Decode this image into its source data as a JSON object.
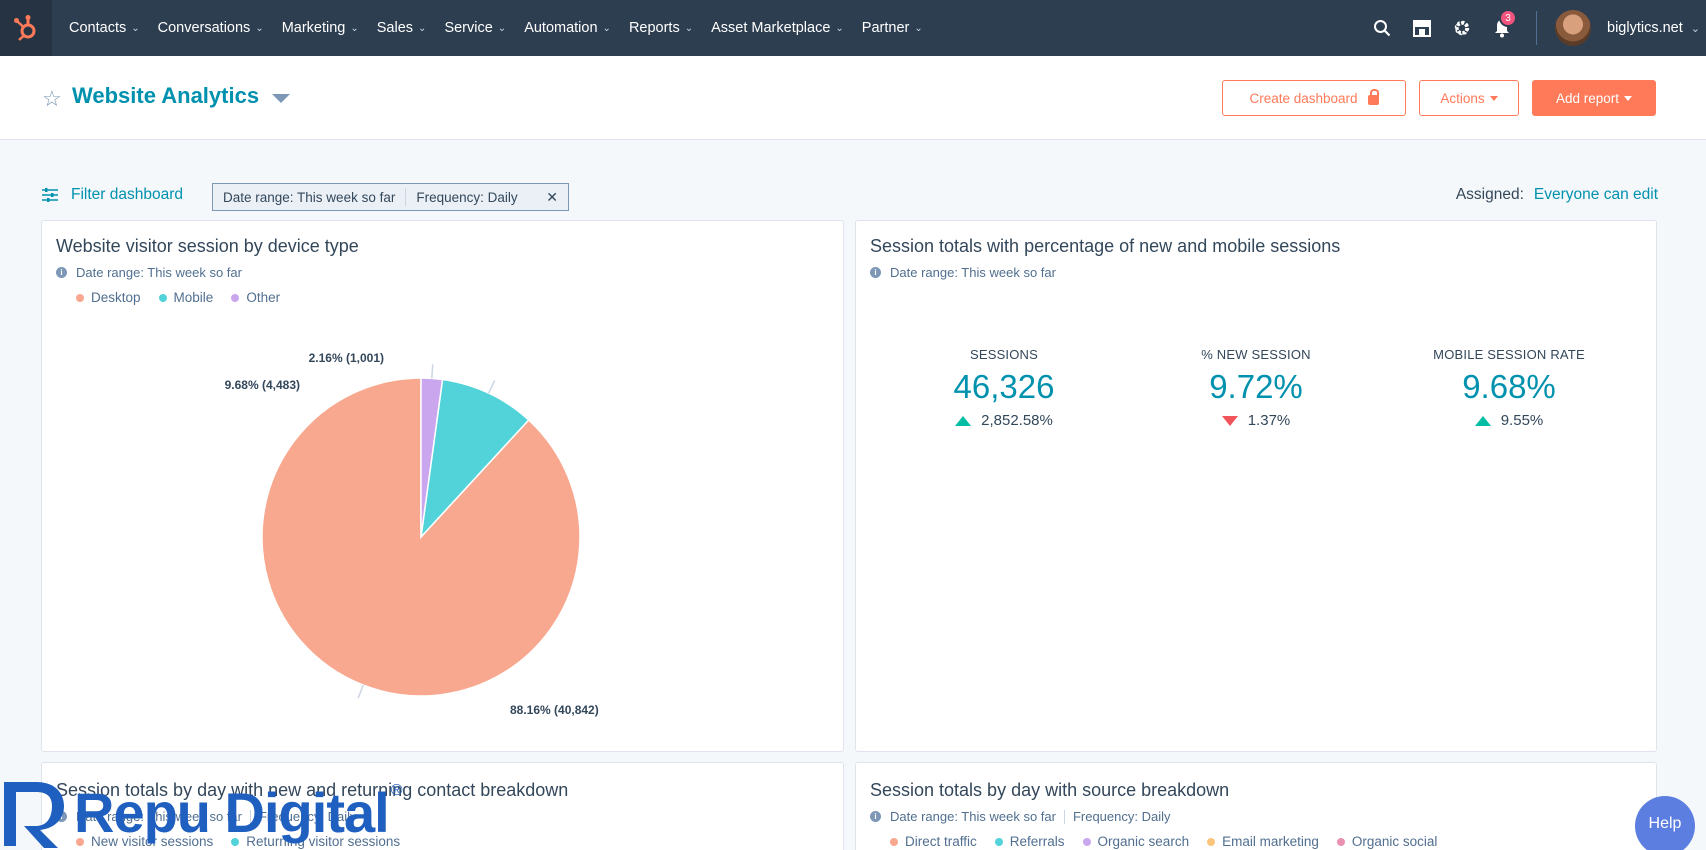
{
  "nav": {
    "logo_icon": "hubspot-sprocket-icon",
    "items": [
      {
        "label": "Contacts"
      },
      {
        "label": "Conversations"
      },
      {
        "label": "Marketing"
      },
      {
        "label": "Sales"
      },
      {
        "label": "Service"
      },
      {
        "label": "Automation"
      },
      {
        "label": "Reports"
      },
      {
        "label": "Asset Marketplace"
      },
      {
        "label": "Partner"
      }
    ],
    "notification_count": "3",
    "account_name": "biglytics.net"
  },
  "header": {
    "title": "Website Analytics",
    "create_dashboard": "Create dashboard",
    "actions": "Actions",
    "add_report": "Add report"
  },
  "filters": {
    "filter_link": "Filter dashboard",
    "chip_date": "Date range: This week so far",
    "chip_freq": "Frequency: Daily",
    "assigned_label": "Assigned:",
    "assigned_value": "Everyone can edit"
  },
  "cards": {
    "device": {
      "title": "Website visitor session by device type",
      "subtitle": "Date range: This week so far",
      "legend": [
        "Desktop",
        "Mobile",
        "Other"
      ]
    },
    "totals": {
      "title": "Session totals with percentage of new and mobile sessions",
      "subtitle": "Date range: This week so far",
      "kpis": [
        {
          "label": "SESSIONS",
          "value": "46,326",
          "delta": "2,852.58%",
          "direction": "up"
        },
        {
          "label": "% NEW SESSION",
          "value": "9.72%",
          "delta": "1.37%",
          "direction": "down"
        },
        {
          "label": "MOBILE SESSION RATE",
          "value": "9.68%",
          "delta": "9.55%",
          "direction": "up"
        }
      ]
    },
    "by_day_contact": {
      "title": "Session totals by day with new and returning contact breakdown",
      "subtitle_date": "Date range: This week so far",
      "subtitle_freq": "Frequency: Daily",
      "legend": [
        "New visitor sessions",
        "Returning visitor sessions"
      ]
    },
    "by_day_source": {
      "title": "Session totals by day with source breakdown",
      "subtitle_date": "Date range: This week so far",
      "subtitle_freq": "Frequency: Daily",
      "legend": [
        "Direct traffic",
        "Referrals",
        "Organic search",
        "Email marketing",
        "Organic social"
      ]
    }
  },
  "colors": {
    "desktop": "#f8a88f",
    "mobile": "#51d3d9",
    "other": "#c9a6ee",
    "direct": "#f8a88f",
    "referrals": "#51d3d9",
    "organic_search": "#c9a6ee",
    "email": "#fcc47d",
    "social": "#ea90b1"
  },
  "chart_data": {
    "type": "pie",
    "categories": [
      "Desktop",
      "Mobile",
      "Other"
    ],
    "values": [
      40842,
      4483,
      1001
    ],
    "percent_labels": [
      "88.16% (40,842)",
      "9.68% (4,483)",
      "2.16% (1,001)"
    ]
  },
  "watermark": {
    "text": "Repu Digital",
    "reg": "®"
  },
  "help": "Help"
}
